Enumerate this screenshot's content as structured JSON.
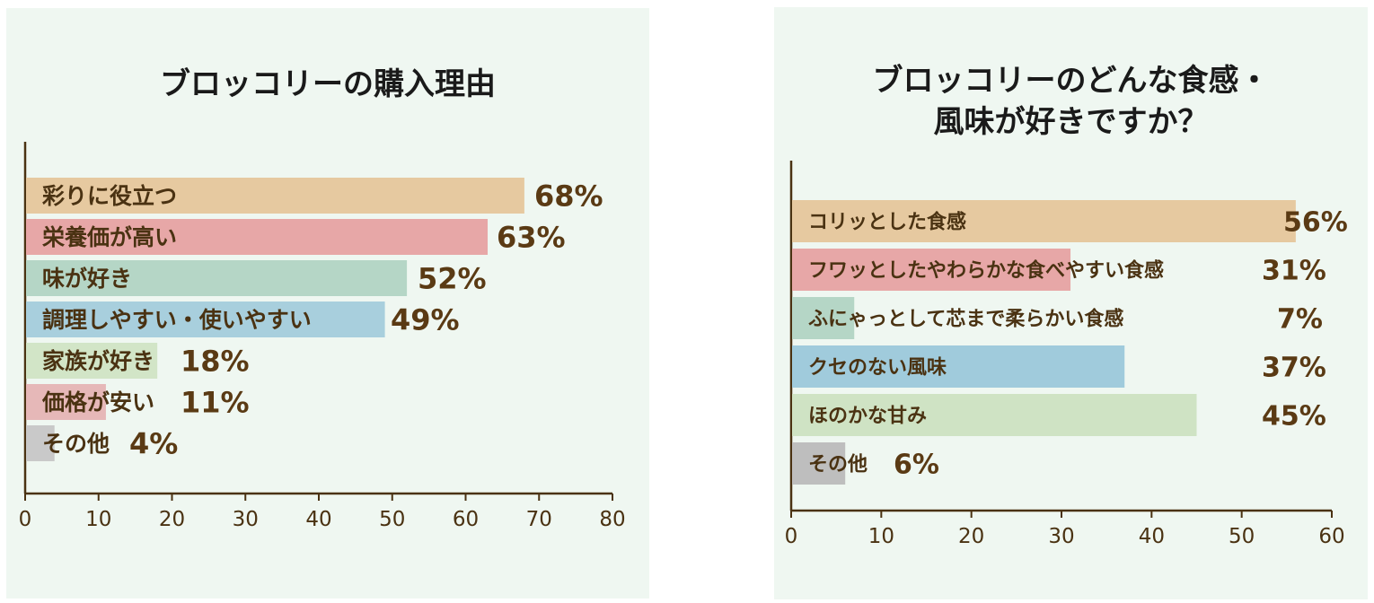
{
  "chart_data": [
    {
      "type": "bar",
      "orientation": "horizontal",
      "title": "ブロッコリーの購入理由",
      "categories": [
        "彩りに役立つ",
        "栄養価が高い",
        "味が好き",
        "調理しやすい・使いやすい",
        "家族が好き",
        "価格が安い",
        "その他"
      ],
      "values": [
        68,
        63,
        52,
        49,
        18,
        11,
        4
      ],
      "value_labels": [
        "68%",
        "63%",
        "52%",
        "49%",
        "18%",
        "11%",
        "4%"
      ],
      "colors": [
        "#e6c9a0",
        "#e7a7a7",
        "#b5d6c6",
        "#a8cfdd",
        "#d2e5c7",
        "#e6b8b8",
        "#c9c9c9"
      ],
      "xlim": [
        0,
        80
      ],
      "xticks": [
        0,
        10,
        20,
        30,
        40,
        50,
        60,
        70,
        80
      ],
      "grid": false
    },
    {
      "type": "bar",
      "orientation": "horizontal",
      "title": "ブロッコリーのどんな食感・\n風味が好きですか？",
      "categories": [
        "コリッとした食感",
        "フワッとしたやわらかな食べやすい食感",
        "ふにゃっとして芯まで柔らかい食感",
        "クセのない風味",
        "ほのかな甘み",
        "その他"
      ],
      "values": [
        56,
        31,
        7,
        37,
        45,
        6
      ],
      "value_labels": [
        "56%",
        "31%",
        "7%",
        "37%",
        "45%",
        "6%"
      ],
      "colors": [
        "#e6c9a0",
        "#e7a7a7",
        "#b5d6c6",
        "#a0cbdc",
        "#cfe3c4",
        "#bebebe"
      ],
      "xlim": [
        0,
        60
      ],
      "xticks": [
        0,
        10,
        20,
        30,
        40,
        50,
        60
      ],
      "grid": false
    }
  ]
}
